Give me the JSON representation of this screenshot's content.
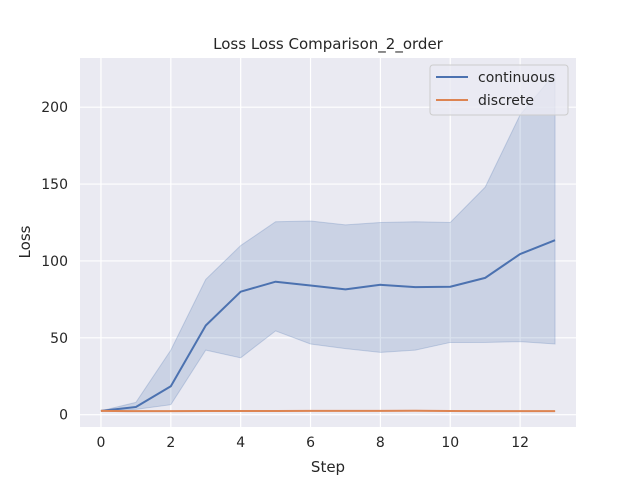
{
  "chart_data": {
    "type": "line",
    "title": "Loss Loss Comparison_2_order",
    "xlabel": "Step",
    "ylabel": "Loss",
    "xlim": [
      -0.6,
      13.6
    ],
    "ylim": [
      -8,
      232
    ],
    "xticks": [
      0,
      2,
      4,
      6,
      8,
      10,
      12
    ],
    "yticks": [
      0,
      50,
      100,
      150,
      200
    ],
    "grid": true,
    "legend_position": "top-right",
    "x": [
      0,
      1,
      2,
      3,
      4,
      5,
      6,
      7,
      8,
      9,
      10,
      11,
      12,
      13
    ],
    "series": [
      {
        "name": "continuous",
        "color": "#4c72b0",
        "values": [
          2.5,
          5.0,
          18.5,
          58.0,
          80.0,
          86.5,
          84.0,
          81.5,
          84.5,
          83.0,
          83.2,
          89.0,
          104.5,
          113.5
        ],
        "band_lower": [
          2.5,
          3.5,
          6.5,
          42.0,
          37.0,
          54.5,
          46.0,
          43.0,
          40.5,
          42.0,
          47.0,
          47.0,
          47.5,
          46.0
        ],
        "band_upper": [
          2.5,
          8.0,
          42.0,
          88.0,
          110.0,
          125.5,
          126.0,
          123.5,
          125.0,
          125.5,
          125.0,
          148.0,
          195.0,
          222.0
        ]
      },
      {
        "name": "discrete",
        "color": "#dd8452",
        "values": [
          2.5,
          2.3,
          2.3,
          2.4,
          2.4,
          2.4,
          2.5,
          2.5,
          2.5,
          2.6,
          2.4,
          2.3,
          2.3,
          2.3
        ],
        "band_lower": [
          2.3,
          2.1,
          2.1,
          2.2,
          2.2,
          2.2,
          2.3,
          2.3,
          2.3,
          2.4,
          2.2,
          2.1,
          2.1,
          2.1
        ],
        "band_upper": [
          2.7,
          2.5,
          2.5,
          2.6,
          2.6,
          2.6,
          2.7,
          2.7,
          2.7,
          2.8,
          2.6,
          2.5,
          2.5,
          2.5
        ]
      }
    ]
  }
}
